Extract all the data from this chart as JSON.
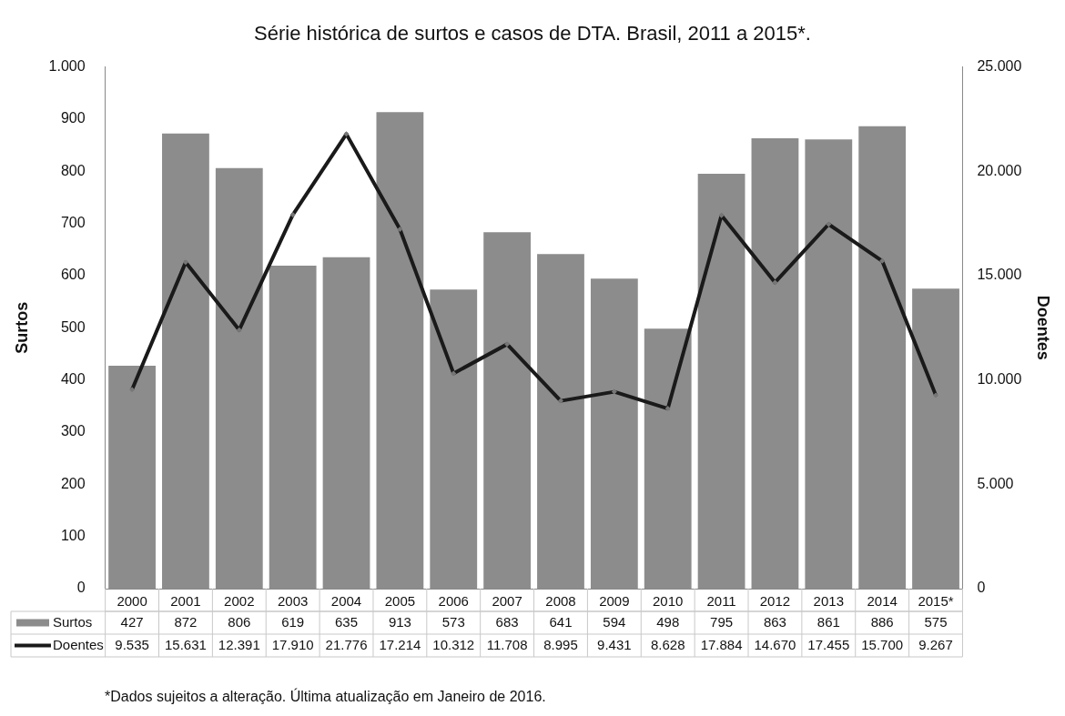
{
  "chart_data": {
    "type": "bar",
    "title": "Série histórica de surtos e casos de DTA. Brasil, 2011 a 2015*.",
    "categories": [
      "2000",
      "2001",
      "2002",
      "2003",
      "2004",
      "2005",
      "2006",
      "2007",
      "2008",
      "2009",
      "2010",
      "2011",
      "2012",
      "2013",
      "2014",
      "2015*"
    ],
    "series": [
      {
        "name": "Surtos",
        "color": "#8c8c8c",
        "values": [
          427,
          872,
          806,
          619,
          635,
          913,
          573,
          683,
          641,
          594,
          498,
          795,
          863,
          861,
          886,
          575
        ],
        "value_labels": [
          "427",
          "872",
          "806",
          "619",
          "635",
          "913",
          "573",
          "683",
          "641",
          "594",
          "498",
          "795",
          "863",
          "861",
          "886",
          "575"
        ]
      },
      {
        "name": "Doentes",
        "type": "line",
        "axis": "y2",
        "color": "#1a1a1a",
        "values": [
          9535,
          15631,
          12391,
          17910,
          21776,
          17214,
          10312,
          11708,
          8995,
          9431,
          8628,
          17884,
          14670,
          17455,
          15700,
          9267
        ],
        "value_labels": [
          "9.535",
          "15.631",
          "12.391",
          "17.910",
          "21.776",
          "17.214",
          "10.312",
          "11.708",
          "8.995",
          "9.431",
          "8.628",
          "17.884",
          "14.670",
          "17.455",
          "15.700",
          "9.267"
        ]
      }
    ],
    "ylabel": "Surtos",
    "y2label": "Doentes",
    "ylim": [
      0,
      1000
    ],
    "yticks": [
      0,
      100,
      200,
      300,
      400,
      500,
      600,
      700,
      800,
      900,
      {
        "value": 1000,
        "label": "1.000"
      }
    ],
    "y2lim": [
      0,
      25000
    ],
    "y2ticks": [
      0,
      {
        "value": 5000,
        "label": "5.000"
      },
      {
        "value": 10000,
        "label": "10.000"
      },
      {
        "value": 15000,
        "label": "15.000"
      },
      {
        "value": 20000,
        "label": "20.000"
      },
      {
        "value": 25000,
        "label": "25.000"
      }
    ],
    "marker": "diamond",
    "line_style": "solid",
    "grid": false,
    "legend": "bottom",
    "annotations": [
      "*Dados sujeitos a alteração. Última atualização em Janeiro de 2016."
    ]
  }
}
